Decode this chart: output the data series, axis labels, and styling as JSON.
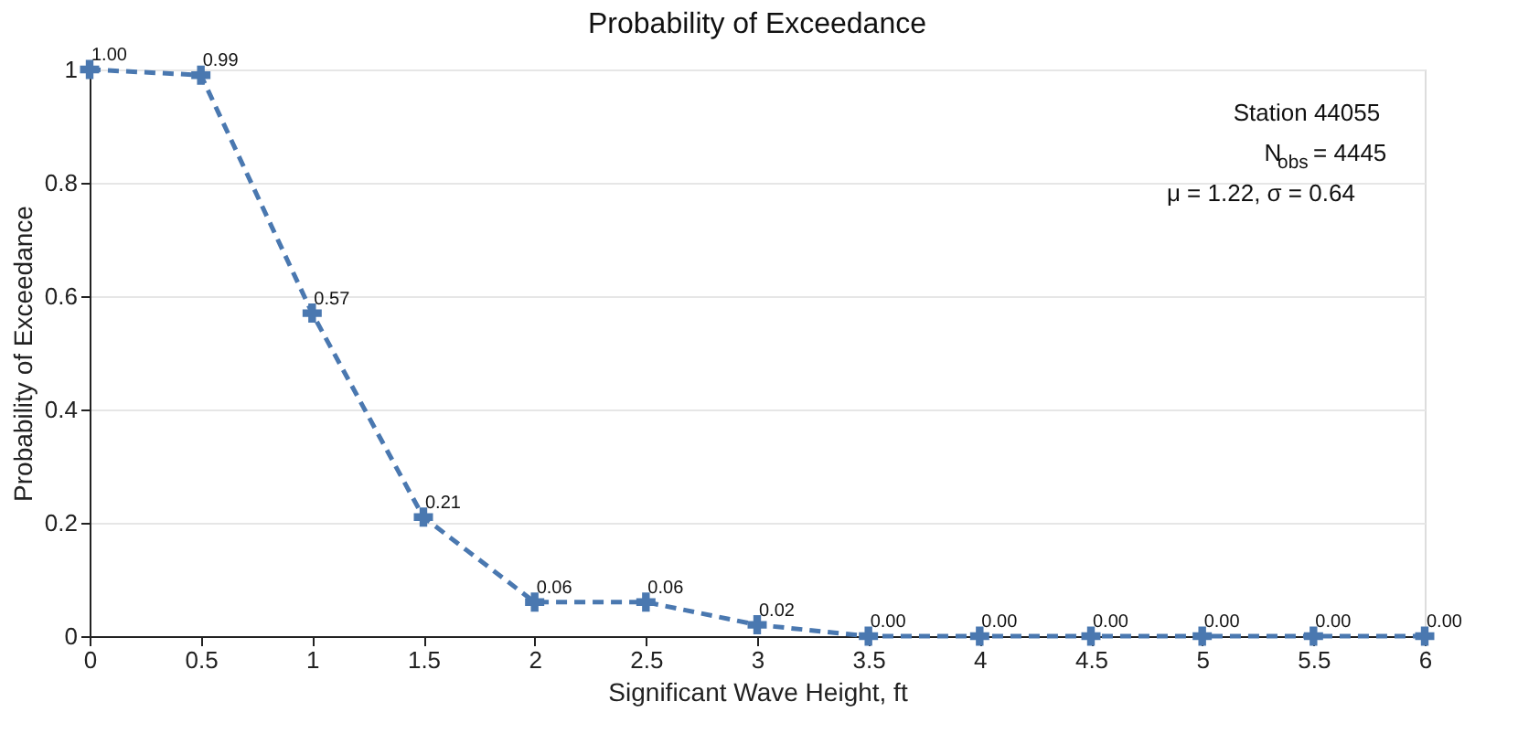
{
  "chart_data": {
    "type": "line",
    "title": "Probability of Exceedance",
    "xlabel": "Significant Wave Height, ft",
    "ylabel": "Probability of Exceedance",
    "x": [
      0,
      0.5,
      1,
      1.5,
      2,
      2.5,
      3,
      3.5,
      4,
      4.5,
      5,
      5.5,
      6
    ],
    "series": [
      {
        "color": "#4a78b0",
        "values": [
          1.0,
          0.99,
          0.57,
          0.21,
          0.06,
          0.06,
          0.02,
          0.0,
          0.0,
          0.0,
          0.0,
          0.0,
          0.0
        ],
        "value_labels": [
          "1.00",
          "0.99",
          "0.57",
          "0.21",
          "0.06",
          "0.06",
          "0.02",
          "0.00",
          "0.00",
          "0.00",
          "0.00",
          "0.00",
          "0.00"
        ]
      }
    ],
    "xlim": [
      0,
      6
    ],
    "ylim": [
      0,
      1
    ],
    "xticks": [
      0,
      0.5,
      1,
      1.5,
      2,
      2.5,
      3,
      3.5,
      4,
      4.5,
      5,
      5.5,
      6
    ],
    "yticks": [
      0,
      0.2,
      0.4,
      0.6,
      0.8,
      1
    ],
    "annotations": [
      "Station 44055",
      "N$_{obs}$ = 4445",
      "μ = 1.22, σ = 0.64"
    ],
    "grid": "y",
    "marker": "cross",
    "line_style": "dashed"
  }
}
